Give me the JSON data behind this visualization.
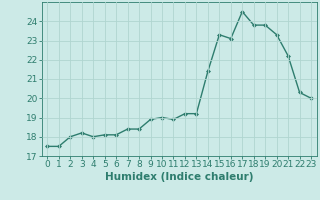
{
  "x": [
    0,
    1,
    2,
    3,
    4,
    5,
    6,
    7,
    8,
    9,
    10,
    11,
    12,
    13,
    14,
    15,
    16,
    17,
    18,
    19,
    20,
    21,
    22,
    23
  ],
  "y": [
    17.5,
    17.5,
    18.0,
    18.2,
    18.0,
    18.1,
    18.1,
    18.4,
    18.4,
    18.9,
    19.0,
    18.9,
    19.2,
    19.2,
    21.4,
    23.3,
    23.1,
    24.5,
    23.8,
    23.8,
    23.3,
    22.2,
    20.3,
    20.0
  ],
  "line_color": "#2e7d6e",
  "marker": "D",
  "marker_size": 2.0,
  "bg_color": "#cceae7",
  "grid_color": "#b0d5d0",
  "xlabel": "Humidex (Indice chaleur)",
  "ylim": [
    17,
    25
  ],
  "xlim": [
    -0.5,
    23.5
  ],
  "yticks": [
    17,
    18,
    19,
    20,
    21,
    22,
    23,
    24
  ],
  "xticks": [
    0,
    1,
    2,
    3,
    4,
    5,
    6,
    7,
    8,
    9,
    10,
    11,
    12,
    13,
    14,
    15,
    16,
    17,
    18,
    19,
    20,
    21,
    22,
    23
  ],
  "tick_fontsize": 6.5,
  "xlabel_fontsize": 7.5,
  "line_width": 1.0
}
